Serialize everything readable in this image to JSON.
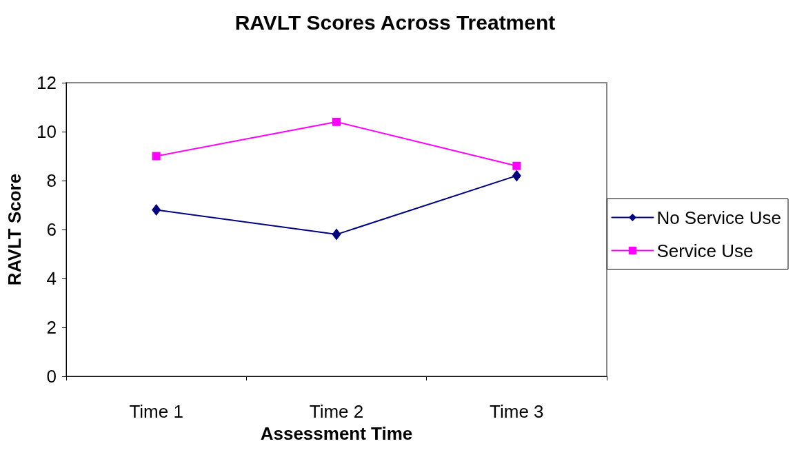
{
  "chart_data": {
    "type": "line",
    "title": "RAVLT Scores Across Treatment",
    "xlabel": "Assessment Time",
    "ylabel": "RAVLT Score",
    "categories": [
      "Time 1",
      "Time 2",
      "Time 3"
    ],
    "series": [
      {
        "name": "No Service Use",
        "color": "#000080",
        "marker": "diamond",
        "values": [
          6.8,
          5.8,
          8.2
        ]
      },
      {
        "name": "Service Use",
        "color": "#ff00ff",
        "marker": "square",
        "values": [
          9.0,
          10.4,
          8.6
        ]
      }
    ],
    "ylim": [
      0,
      12
    ],
    "yticks": [
      0,
      2,
      4,
      6,
      8,
      10,
      12
    ],
    "grid": false,
    "legend": "right",
    "line_style": "solid"
  }
}
